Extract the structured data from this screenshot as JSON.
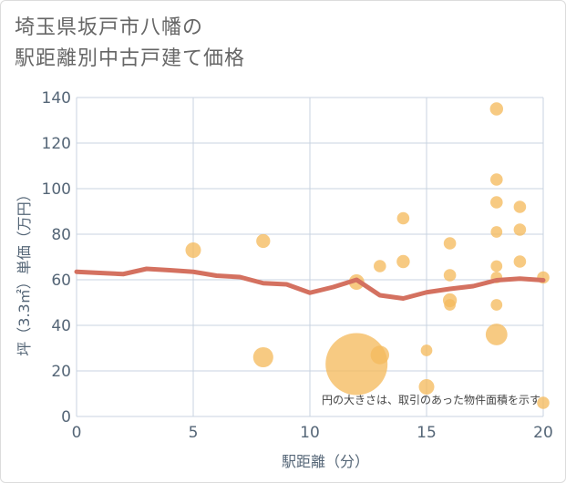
{
  "title_lines": [
    "埼玉県坂戸市八幡の",
    "駅距離別中古戸建て価格"
  ],
  "chart_data": {
    "type": "scatter",
    "title": "埼玉県坂戸市八幡の駅距離別中古戸建て価格",
    "xlabel": "駅距離（分）",
    "ylabel": "坪（3.3㎡）単価（万円）",
    "xlim": [
      0,
      20
    ],
    "ylim": [
      0,
      140
    ],
    "x_ticks": [
      0,
      5,
      10,
      15,
      20
    ],
    "y_ticks": [
      0,
      20,
      40,
      60,
      80,
      100,
      120,
      140
    ],
    "note": "円の大きさは、取引のあった物件面積を示す",
    "colors": {
      "bubble": "#f5bb5f",
      "line": "#d47160",
      "grid": "#c9d3e0",
      "axis_text": "#556677"
    },
    "bubbles": [
      {
        "x": 5,
        "y": 73,
        "size": 1.0
      },
      {
        "x": 8,
        "y": 77,
        "size": 0.9
      },
      {
        "x": 8,
        "y": 26,
        "size": 1.3
      },
      {
        "x": 12,
        "y": 59,
        "size": 1.0
      },
      {
        "x": 12,
        "y": 23,
        "size": 4.0
      },
      {
        "x": 13,
        "y": 66,
        "size": 0.8
      },
      {
        "x": 13,
        "y": 27,
        "size": 1.2
      },
      {
        "x": 14,
        "y": 87,
        "size": 0.8
      },
      {
        "x": 14,
        "y": 68,
        "size": 0.85
      },
      {
        "x": 15,
        "y": 29,
        "size": 0.75
      },
      {
        "x": 15,
        "y": 13,
        "size": 1.0
      },
      {
        "x": 16,
        "y": 76,
        "size": 0.8
      },
      {
        "x": 16,
        "y": 62,
        "size": 0.8
      },
      {
        "x": 16,
        "y": 51,
        "size": 0.9
      },
      {
        "x": 16,
        "y": 49,
        "size": 0.75
      },
      {
        "x": 18,
        "y": 135,
        "size": 0.85
      },
      {
        "x": 18,
        "y": 104,
        "size": 0.8
      },
      {
        "x": 18,
        "y": 94,
        "size": 0.8
      },
      {
        "x": 18,
        "y": 81,
        "size": 0.75
      },
      {
        "x": 18,
        "y": 66,
        "size": 0.75
      },
      {
        "x": 18,
        "y": 61,
        "size": 0.75
      },
      {
        "x": 18,
        "y": 49,
        "size": 0.75
      },
      {
        "x": 18,
        "y": 36,
        "size": 1.4
      },
      {
        "x": 19,
        "y": 92,
        "size": 0.8
      },
      {
        "x": 19,
        "y": 82,
        "size": 0.8
      },
      {
        "x": 19,
        "y": 68,
        "size": 0.8
      },
      {
        "x": 20,
        "y": 61,
        "size": 0.8
      },
      {
        "x": 20,
        "y": 6,
        "size": 0.8
      }
    ],
    "trend": {
      "x": [
        0,
        1,
        2,
        3,
        4,
        5,
        6,
        7,
        8,
        9,
        10,
        11,
        12,
        13,
        14,
        15,
        16,
        17,
        18,
        19,
        20
      ],
      "y": [
        63.5,
        63,
        62.5,
        64.8,
        64.2,
        63.5,
        61.8,
        61.2,
        58.5,
        58,
        54.3,
        56.8,
        60,
        53.2,
        51.8,
        54.5,
        56,
        57.2,
        59.8,
        60.5,
        59.8
      ]
    }
  }
}
